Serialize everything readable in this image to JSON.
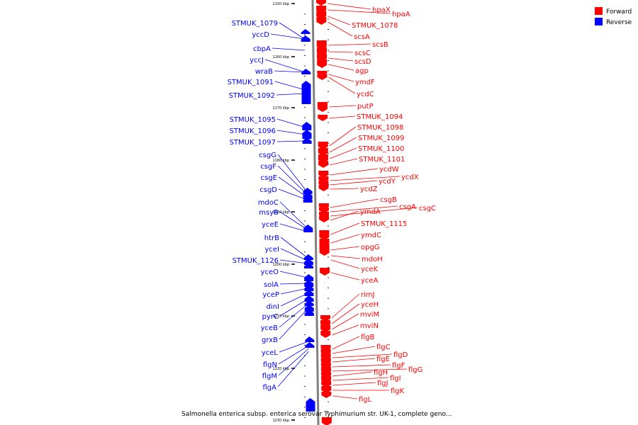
{
  "legend": {
    "items": [
      {
        "label": "Forward",
        "color": "#ff0000"
      },
      {
        "label": "Reverse",
        "color": "#0000ff"
      }
    ]
  },
  "caption": "Salmonella enterica subsp. enterica serovar Typhimurium str. UK-1, complete geno...",
  "colors": {
    "forward": "#ff0000",
    "reverse": "#0000ff",
    "axis": "#808080"
  },
  "ticks": [
    "1150 kbp",
    "1160 kbp",
    "1170 kbp",
    "1180 kbp",
    "1190 kbp",
    "1200 kbp",
    "1210 kbp",
    "1220 kbp",
    "1230 kbp"
  ],
  "reverse_genes": [
    "STMUK_1079",
    "yccD",
    "cbpA",
    "yccJ",
    "wraB",
    "STMUK_1091",
    "STMUK_1092",
    "STMUK_1095",
    "STMUK_1096",
    "STMUK_1097",
    "csgG",
    "csgF",
    "csgE",
    "csgD",
    "mdoC",
    "msyB",
    "yceE",
    "htrB",
    "yceI",
    "STMUK_1126",
    "yceO",
    "solA",
    "yceP",
    "dinI",
    "pyrC",
    "yceB",
    "grxB",
    "yceL",
    "flgN",
    "flgM",
    "flgA"
  ],
  "forward_genes": [
    "hpaX",
    "hpaA",
    "STMUK_1078",
    "scsA",
    "scsB",
    "scsC",
    "scsD",
    "agp",
    "ymdF",
    "ycdC",
    "putP",
    "STMUK_1094",
    "STMUK_1098",
    "STMUK_1099",
    "STMUK_1100",
    "STMUK_1101",
    "ycdW",
    "ycdX",
    "ycdY",
    "ycdZ",
    "csgB",
    "csgA",
    "csgC",
    "ymdA",
    "STMUK_1115",
    "ymdC",
    "opgG",
    "mdoH",
    "yceK",
    "yceA",
    "rimJ",
    "yceH",
    "mviM",
    "mviN",
    "flgB",
    "flgC",
    "flgD",
    "flgE",
    "flgF",
    "flgG",
    "flgH",
    "flgI",
    "flgJ",
    "flgK",
    "flgL"
  ]
}
